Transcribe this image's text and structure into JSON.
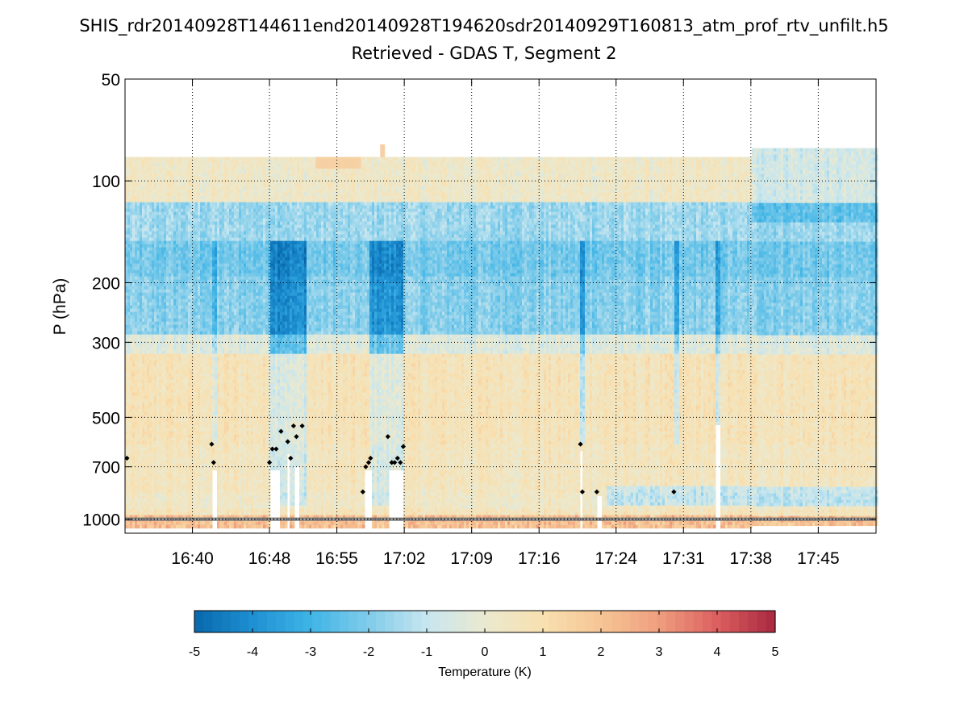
{
  "chart_data": {
    "type": "heatmap",
    "title": "SHIS_rdr20140928T144611end20140928T194620sdr20140929T160813_atm_prof_rtv_unfilt.h5",
    "subtitle": "Retrieved - GDAS T, Segment 2",
    "xlabel": "",
    "ylabel": "P (hPa)",
    "y_scale": "log",
    "y_reversed": true,
    "ylim": [
      50,
      1100
    ],
    "y_ticks": [
      50,
      100,
      200,
      300,
      500,
      700,
      1000
    ],
    "y_tick_labels": [
      "50",
      "100",
      "200",
      "300",
      "500",
      "700",
      "1000"
    ],
    "xlim": [
      "16:33",
      "17:51"
    ],
    "x_ticks": [
      "16:40",
      "16:48",
      "16:55",
      "17:02",
      "17:09",
      "17:16",
      "17:24",
      "17:31",
      "17:38",
      "17:45"
    ],
    "grid": "dotted",
    "colorbar": {
      "label": "Temperature (K)",
      "range": [
        -5,
        5
      ],
      "ticks": [
        "-5",
        "-4",
        "-3",
        "-2",
        "-1",
        "0",
        "1",
        "2",
        "3",
        "4",
        "5"
      ],
      "colormap": [
        "#0868ac",
        "#1e90d2",
        "#3fb4e6",
        "#80ccea",
        "#c7e6ef",
        "#ebe9cf",
        "#f8e0b0",
        "#f6c595",
        "#ef9e7e",
        "#dc5f60",
        "#a8283f"
      ]
    },
    "data_top_pressure_hPa": 85,
    "data_top_pressure_right_hPa": 80,
    "cloud_markers": [
      {
        "time": "16:33.2",
        "p": 660
      },
      {
        "time": "16:42.0",
        "p": 600
      },
      {
        "time": "16:42.2",
        "p": 680
      },
      {
        "time": "16:48.0",
        "p": 680
      },
      {
        "time": "16:48.3",
        "p": 620
      },
      {
        "time": "16:48.7",
        "p": 620
      },
      {
        "time": "16:49.2",
        "p": 550
      },
      {
        "time": "16:49.9",
        "p": 590
      },
      {
        "time": "16:50.2",
        "p": 660
      },
      {
        "time": "16:50.5",
        "p": 530
      },
      {
        "time": "16:50.8",
        "p": 570
      },
      {
        "time": "16:51.4",
        "p": 530
      },
      {
        "time": "16:57.7",
        "p": 830
      },
      {
        "time": "16:58.0",
        "p": 700
      },
      {
        "time": "16:58.3",
        "p": 680
      },
      {
        "time": "16:58.5",
        "p": 660
      },
      {
        "time": "17:00.3",
        "p": 570
      },
      {
        "time": "17:00.7",
        "p": 680
      },
      {
        "time": "17:01.0",
        "p": 680
      },
      {
        "time": "17:01.3",
        "p": 660
      },
      {
        "time": "17:01.6",
        "p": 680
      },
      {
        "time": "17:01.9",
        "p": 610
      },
      {
        "time": "17:20.3",
        "p": 600
      },
      {
        "time": "17:20.5",
        "p": 830
      },
      {
        "time": "17:22.0",
        "p": 830
      },
      {
        "time": "17:30.0",
        "p": 830
      }
    ]
  }
}
